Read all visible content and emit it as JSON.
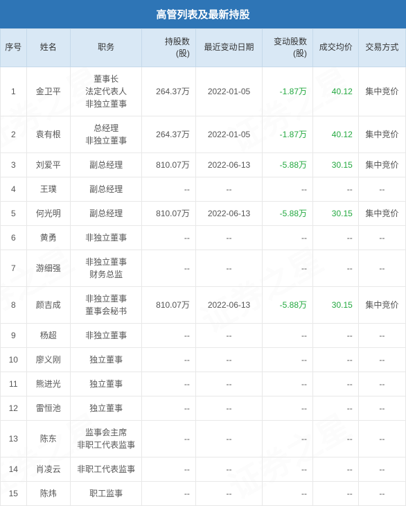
{
  "title": "高管列表及最新持股",
  "watermark_text": "证券之星",
  "colors": {
    "header_bg": "#2e75b6",
    "header_text": "#ffffff",
    "thead_bg": "#d9e8f5",
    "thead_border": "#c5d9ea",
    "cell_border": "#e8e8e8",
    "cell_text": "#555555",
    "negative_text": "#22a83f",
    "price_text": "#22a83f",
    "watermark_color": "rgba(180,180,180,0.15)"
  },
  "columns": [
    {
      "key": "seq",
      "label": "序号"
    },
    {
      "key": "name",
      "label": "姓名"
    },
    {
      "key": "position",
      "label": "职务"
    },
    {
      "key": "shares",
      "label": "持股数\n(股)"
    },
    {
      "key": "date",
      "label": "最近变动日期"
    },
    {
      "key": "change",
      "label": "变动股数\n(股)"
    },
    {
      "key": "price",
      "label": "成交均价"
    },
    {
      "key": "method",
      "label": "交易方式"
    }
  ],
  "rows": [
    {
      "seq": "1",
      "name": "金卫平",
      "position": "董事长\n法定代表人\n非独立董事",
      "shares": "264.37万",
      "date": "2022-01-05",
      "change": "-1.87万",
      "price": "40.12",
      "method": "集中竞价"
    },
    {
      "seq": "2",
      "name": "袁有根",
      "position": "总经理\n非独立董事",
      "shares": "264.37万",
      "date": "2022-01-05",
      "change": "-1.87万",
      "price": "40.12",
      "method": "集中竞价"
    },
    {
      "seq": "3",
      "name": "刘爱平",
      "position": "副总经理",
      "shares": "810.07万",
      "date": "2022-06-13",
      "change": "-5.88万",
      "price": "30.15",
      "method": "集中竞价"
    },
    {
      "seq": "4",
      "name": "王璞",
      "position": "副总经理",
      "shares": "--",
      "date": "--",
      "change": "--",
      "price": "--",
      "method": "--"
    },
    {
      "seq": "5",
      "name": "何光明",
      "position": "副总经理",
      "shares": "810.07万",
      "date": "2022-06-13",
      "change": "-5.88万",
      "price": "30.15",
      "method": "集中竞价"
    },
    {
      "seq": "6",
      "name": "黄勇",
      "position": "非独立董事",
      "shares": "--",
      "date": "--",
      "change": "--",
      "price": "--",
      "method": "--"
    },
    {
      "seq": "7",
      "name": "游细强",
      "position": "非独立董事\n财务总监",
      "shares": "--",
      "date": "--",
      "change": "--",
      "price": "--",
      "method": "--"
    },
    {
      "seq": "8",
      "name": "颜吉成",
      "position": "非独立董事\n董事会秘书",
      "shares": "810.07万",
      "date": "2022-06-13",
      "change": "-5.88万",
      "price": "30.15",
      "method": "集中竞价"
    },
    {
      "seq": "9",
      "name": "杨超",
      "position": "非独立董事",
      "shares": "--",
      "date": "--",
      "change": "--",
      "price": "--",
      "method": "--"
    },
    {
      "seq": "10",
      "name": "廖义刚",
      "position": "独立董事",
      "shares": "--",
      "date": "--",
      "change": "--",
      "price": "--",
      "method": "--"
    },
    {
      "seq": "11",
      "name": "熊进光",
      "position": "独立董事",
      "shares": "--",
      "date": "--",
      "change": "--",
      "price": "--",
      "method": "--"
    },
    {
      "seq": "12",
      "name": "雷恒池",
      "position": "独立董事",
      "shares": "--",
      "date": "--",
      "change": "--",
      "price": "--",
      "method": "--"
    },
    {
      "seq": "13",
      "name": "陈东",
      "position": "监事会主席\n非职工代表监事",
      "shares": "--",
      "date": "--",
      "change": "--",
      "price": "--",
      "method": "--"
    },
    {
      "seq": "14",
      "name": "肖凌云",
      "position": "非职工代表监事",
      "shares": "--",
      "date": "--",
      "change": "--",
      "price": "--",
      "method": "--"
    },
    {
      "seq": "15",
      "name": "陈炜",
      "position": "职工监事",
      "shares": "--",
      "date": "--",
      "change": "--",
      "price": "--",
      "method": "--"
    }
  ]
}
